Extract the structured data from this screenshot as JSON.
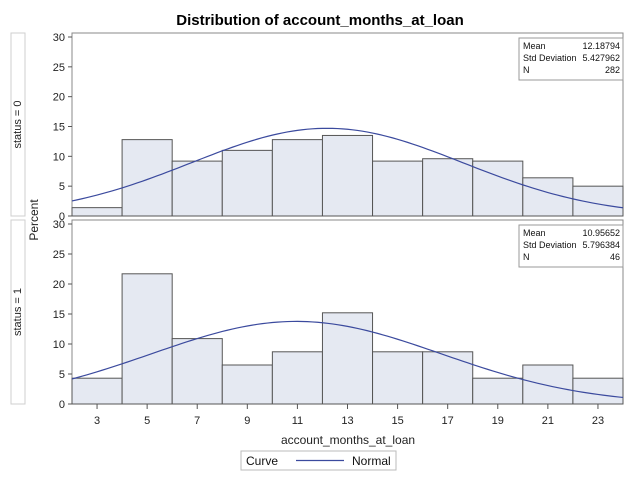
{
  "chart_data": {
    "type": "bar",
    "title": "Distribution of account_months_at_loan",
    "xlabel": "account_months_at_loan",
    "ylabel": "Percent",
    "xlim": [
      2,
      24
    ],
    "ylim": [
      0,
      30
    ],
    "bin_edges": [
      2,
      4,
      6,
      8,
      10,
      12,
      14,
      16,
      18,
      20,
      22,
      24
    ],
    "x_ticks": [
      3,
      5,
      7,
      9,
      11,
      13,
      15,
      17,
      19,
      21,
      23
    ],
    "y_ticks": [
      0,
      5,
      10,
      15,
      20,
      25,
      30
    ],
    "bar_color": "#e5e9f2",
    "curve_color": "#3b4a9e",
    "panels": [
      {
        "label": "status = 0",
        "values": [
          1.4,
          12.8,
          9.2,
          11.0,
          12.8,
          13.5,
          9.2,
          9.6,
          9.2,
          6.4,
          5.0
        ],
        "stats": [
          {
            "name": "Mean",
            "value": "12.18794"
          },
          {
            "name": "Std Deviation",
            "value": "5.427962"
          },
          {
            "name": "N",
            "value": "282"
          }
        ],
        "normal_mean": 12.18794,
        "normal_sd": 5.427962
      },
      {
        "label": "status = 1",
        "values": [
          4.3,
          21.7,
          10.9,
          6.5,
          8.7,
          15.2,
          8.7,
          8.7,
          4.3,
          6.5,
          4.3
        ],
        "stats": [
          {
            "name": "Mean",
            "value": "10.95652"
          },
          {
            "name": "Std Deviation",
            "value": "5.796384"
          },
          {
            "name": "N",
            "value": "46"
          }
        ],
        "normal_mean": 10.95652,
        "normal_sd": 5.796384
      }
    ],
    "legend": {
      "title": "Curve",
      "entries": [
        {
          "name": "Normal"
        }
      ]
    }
  }
}
